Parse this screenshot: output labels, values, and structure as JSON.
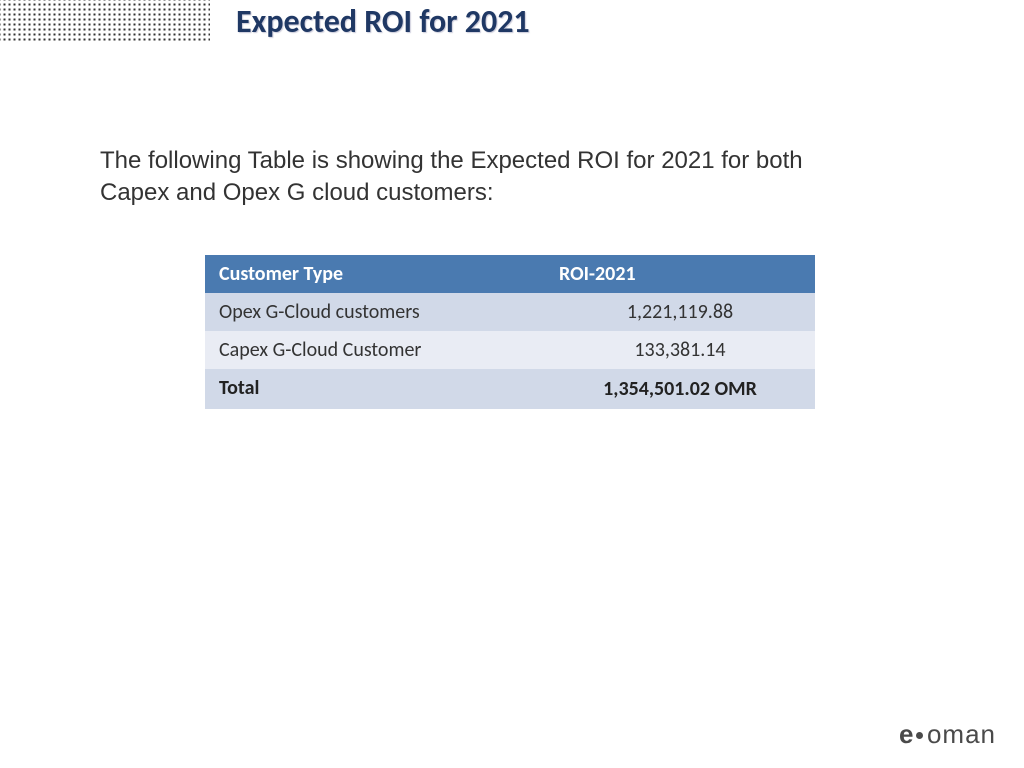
{
  "slide": {
    "title": "Expected ROI for 2021",
    "description": "The following Table is showing the Expected ROI for 2021 for both Capex and Opex G cloud customers:"
  },
  "table": {
    "type": "table",
    "header_bg": "#4a7ab0",
    "header_color": "#ffffff",
    "row_odd_bg": "#d1d9e8",
    "row_even_bg": "#e9ecf4",
    "text_color": "#333333",
    "columns": [
      "Customer Type",
      "ROI-2021"
    ],
    "rows": [
      {
        "type": "Opex G-Cloud customers",
        "roi": "1,221,119.88"
      },
      {
        "type": "Capex G-Cloud Customer",
        "roi": "133,381.14"
      }
    ],
    "total": {
      "label": "Total",
      "value": "1,354,501.02 OMR"
    }
  },
  "logo": {
    "prefix": "e",
    "name": "oman"
  },
  "style": {
    "title_color": "#1f3864",
    "title_fontsize": 32,
    "desc_fontsize": 24,
    "background_color": "#ffffff"
  }
}
